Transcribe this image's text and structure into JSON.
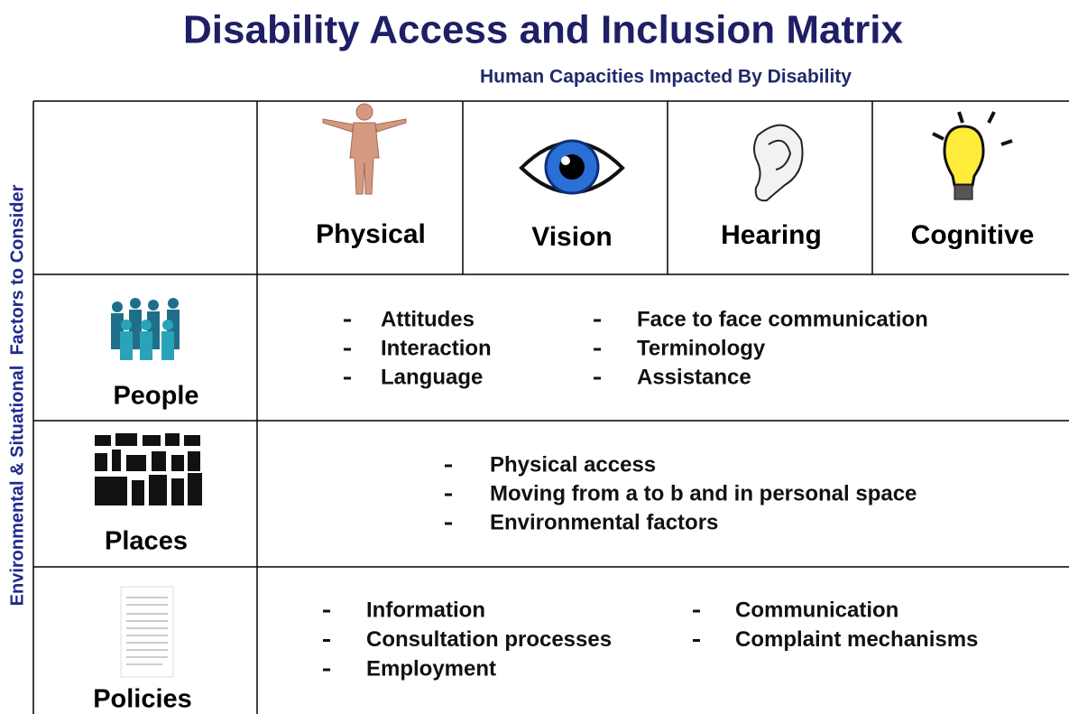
{
  "title": "Disability Access and Inclusion Matrix",
  "subtitle": "Human Capacities Impacted By Disability",
  "side_label": "Environmental & Situational  Factors to Consider",
  "columns": [
    "Physical",
    "Vision",
    "Hearing",
    "Cognitive"
  ],
  "rows": [
    {
      "label": "People",
      "columns": [
        [
          "Attitudes",
          "Interaction",
          "Language"
        ],
        [
          "Face to face communication",
          "Terminology",
          "Assistance"
        ]
      ]
    },
    {
      "label": "Places",
      "columns": [
        [
          "Physical access",
          "Moving from a to b and in personal space",
          "Environmental factors"
        ]
      ]
    },
    {
      "label": "Policies",
      "columns": [
        [
          "Information",
          "Consultation processes",
          "Employment"
        ],
        [
          "Communication",
          "Complaint mechanisms"
        ]
      ]
    }
  ]
}
